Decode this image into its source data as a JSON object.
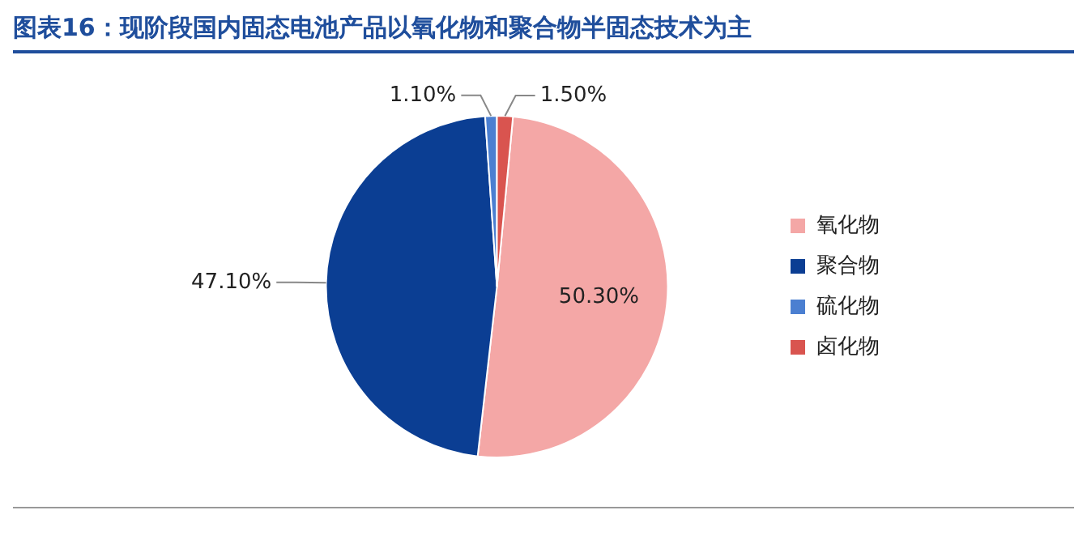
{
  "chart_data": {
    "type": "pie",
    "title": "图表16：现阶段国内固态电池产品以氧化物和聚合物半固态技术为主",
    "categories": [
      "氧化物",
      "聚合物",
      "硫化物",
      "卤化物"
    ],
    "values": [
      50.3,
      47.1,
      1.1,
      1.5
    ],
    "value_labels": [
      "50.30%",
      "47.10%",
      "1.10%",
      "1.50%"
    ],
    "colors": [
      "#f4a7a6",
      "#0b3e93",
      "#4b7fd1",
      "#d9544f"
    ],
    "legend": "right"
  }
}
